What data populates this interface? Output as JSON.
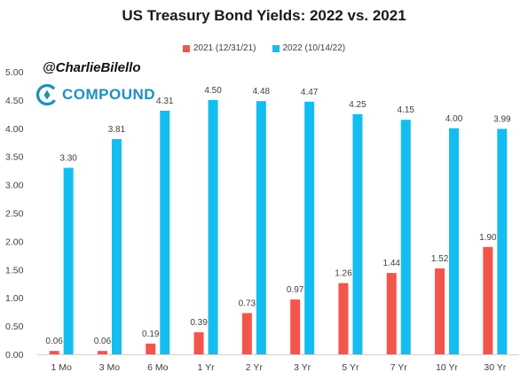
{
  "header": {
    "title": "US Treasury Bond Yields: 2022 vs. 2021"
  },
  "watermark": {
    "handle": "@CharlieBilello",
    "logo_text": "COMPOUND"
  },
  "colors": {
    "series_2021": "#f4554a",
    "series_2022": "#14bdf0",
    "logo": "#1f8fbf"
  },
  "chart_data": {
    "type": "bar",
    "title": "US Treasury Bond Yields: 2022 vs. 2021",
    "xlabel": "",
    "ylabel": "",
    "categories": [
      "1 Mo",
      "3 Mo",
      "6 Mo",
      "1 Yr",
      "2 Yr",
      "3 Yr",
      "5 Yr",
      "7 Yr",
      "10 Yr",
      "30 Yr"
    ],
    "series": [
      {
        "name": "2021 (12/31/21)",
        "values": [
          0.06,
          0.06,
          0.19,
          0.39,
          0.73,
          0.97,
          1.26,
          1.44,
          1.52,
          1.9
        ],
        "color": "#f4554a"
      },
      {
        "name": "2022 (10/14/22)",
        "values": [
          3.3,
          3.81,
          4.31,
          4.5,
          4.48,
          4.47,
          4.25,
          4.15,
          4.0,
          3.99
        ],
        "color": "#14bdf0"
      }
    ],
    "ylim": [
      0,
      5
    ],
    "yticks": [
      "0.00",
      "0.50",
      "1.00",
      "1.50",
      "2.00",
      "2.50",
      "3.00",
      "3.50",
      "4.00",
      "4.50",
      "5.00"
    ],
    "grid": false,
    "legend_position": "top-center",
    "value_labels": true
  }
}
